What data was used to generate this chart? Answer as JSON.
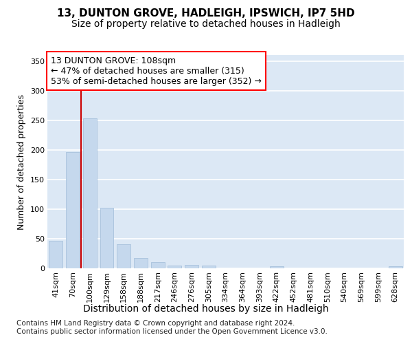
{
  "title_line1": "13, DUNTON GROVE, HADLEIGH, IPSWICH, IP7 5HD",
  "title_line2": "Size of property relative to detached houses in Hadleigh",
  "xlabel": "Distribution of detached houses by size in Hadleigh",
  "ylabel": "Number of detached properties",
  "categories": [
    "41sqm",
    "70sqm",
    "100sqm",
    "129sqm",
    "158sqm",
    "188sqm",
    "217sqm",
    "246sqm",
    "276sqm",
    "305sqm",
    "334sqm",
    "364sqm",
    "393sqm",
    "422sqm",
    "452sqm",
    "481sqm",
    "510sqm",
    "540sqm",
    "569sqm",
    "599sqm",
    "628sqm"
  ],
  "values": [
    47,
    196,
    253,
    102,
    41,
    17,
    10,
    5,
    6,
    5,
    0,
    0,
    0,
    3,
    0,
    0,
    0,
    0,
    0,
    0,
    3
  ],
  "bar_color": "#c5d8ed",
  "bar_edgecolor": "#a0bcd8",
  "annotation_box_text": "13 DUNTON GROVE: 108sqm\n← 47% of detached houses are smaller (315)\n53% of semi-detached houses are larger (352) →",
  "vline_x": 1.5,
  "vline_color": "#cc0000",
  "ylim": [
    0,
    360
  ],
  "yticks": [
    0,
    50,
    100,
    150,
    200,
    250,
    300,
    350
  ],
  "footer_text": "Contains HM Land Registry data © Crown copyright and database right 2024.\nContains public sector information licensed under the Open Government Licence v3.0.",
  "background_color": "#dce8f5",
  "grid_color": "#ffffff",
  "title_fontsize": 11,
  "subtitle_fontsize": 10,
  "xlabel_fontsize": 10,
  "ylabel_fontsize": 9,
  "tick_fontsize": 8,
  "annotation_fontsize": 9
}
